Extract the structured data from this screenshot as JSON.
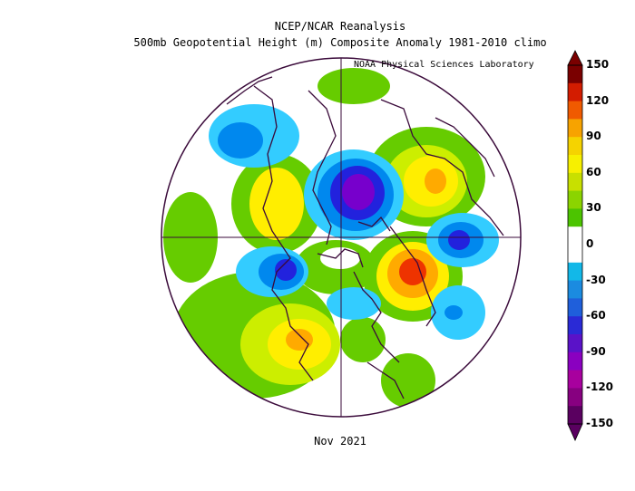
{
  "header": {
    "title": "NCEP/NCAR Reanalysis",
    "subtitle": "500mb Geopotential Height (m) Composite Anomaly 1981-2010 climo",
    "credit": "NOAA Physical Sciences Laboratory"
  },
  "caption": "Nov 2021",
  "colorbar": {
    "labels": [
      "150",
      "120",
      "90",
      "60",
      "30",
      "0",
      "-30",
      "-60",
      "-90",
      "-120",
      "-150"
    ],
    "colors": [
      "#7a0000",
      "#d31c00",
      "#f05a00",
      "#f7a300",
      "#f5d300",
      "#f7f000",
      "#c8e000",
      "#8bd400",
      "#4cc400",
      "#ffffff",
      "#ffffff",
      "#12b8e8",
      "#1b8be0",
      "#1f5fdb",
      "#2a2ad6",
      "#5a12c8",
      "#8a00c0",
      "#a8009e",
      "#870080",
      "#5a0060"
    ]
  },
  "map": {
    "projection": "north-polar-stereographic",
    "anomaly_colors": {
      "green": "#66cc00",
      "lightgreen": "#99dd00",
      "yellowgreen": "#ccee00",
      "yellow": "#ffee00",
      "orange": "#ffaa00",
      "red": "#ee3300",
      "lightblue": "#33ccff",
      "blue": "#0088ee",
      "darkblue": "#2222dd",
      "purple": "#7700cc",
      "magenta": "#990099"
    }
  }
}
